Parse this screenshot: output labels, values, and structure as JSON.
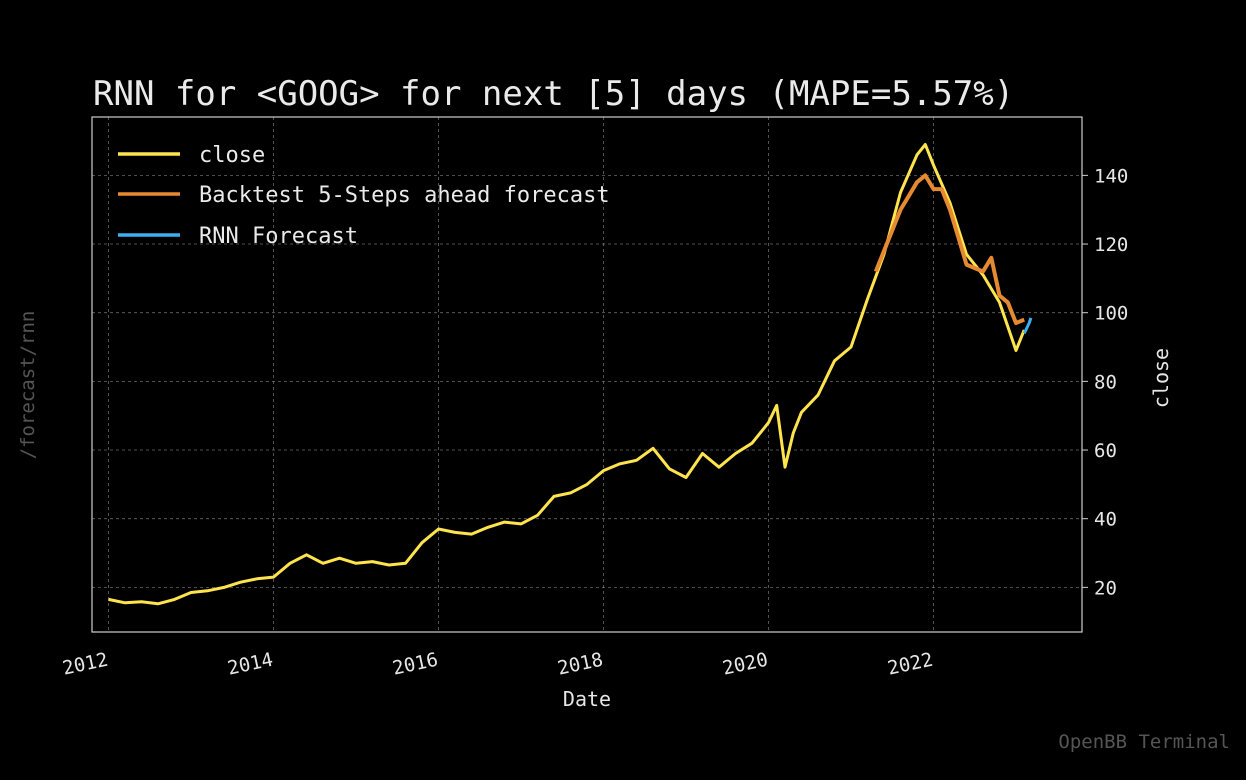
{
  "page": {
    "side_label": "/forecast/rnn",
    "watermark": "OpenBB Terminal"
  },
  "chart_data": {
    "type": "line",
    "title": "RNN for <GOOG> for next [5] days (MAPE=5.57%)",
    "xlabel": "Date",
    "ylabel": "close",
    "xlim": [
      2011.8,
      2023.8
    ],
    "ylim": [
      7,
      157
    ],
    "x_ticks": [
      2012,
      2014,
      2016,
      2018,
      2020,
      2022
    ],
    "y_ticks": [
      20,
      40,
      60,
      80,
      100,
      120,
      140
    ],
    "grid": true,
    "legend_position": "top-left",
    "colors": {
      "close": "#ffe44d",
      "backtest": "#e58a30",
      "forecast": "#3ab0f0",
      "background": "#000000",
      "frame": "#cfcfcf"
    },
    "series": [
      {
        "name": "close",
        "x": [
          2012.0,
          2012.2,
          2012.4,
          2012.6,
          2012.8,
          2013.0,
          2013.2,
          2013.4,
          2013.6,
          2013.8,
          2014.0,
          2014.2,
          2014.4,
          2014.6,
          2014.8,
          2015.0,
          2015.2,
          2015.4,
          2015.6,
          2015.8,
          2016.0,
          2016.2,
          2016.4,
          2016.6,
          2016.8,
          2017.0,
          2017.2,
          2017.4,
          2017.6,
          2017.8,
          2018.0,
          2018.2,
          2018.4,
          2018.6,
          2018.8,
          2019.0,
          2019.2,
          2019.4,
          2019.6,
          2019.8,
          2020.0,
          2020.1,
          2020.2,
          2020.3,
          2020.4,
          2020.6,
          2020.8,
          2021.0,
          2021.2,
          2021.4,
          2021.6,
          2021.8,
          2021.9,
          2022.0,
          2022.2,
          2022.4,
          2022.6,
          2022.8,
          2023.0,
          2023.1
        ],
        "values": [
          16.5,
          15.5,
          15.8,
          15.2,
          16.5,
          18.5,
          19.0,
          20.0,
          21.5,
          22.5,
          23.0,
          27.0,
          29.5,
          27.0,
          28.5,
          27.0,
          27.5,
          26.5,
          27.0,
          33.0,
          37.0,
          36.0,
          35.5,
          37.5,
          39.0,
          38.5,
          41.0,
          46.5,
          47.5,
          50.0,
          54.0,
          56.0,
          57.0,
          60.5,
          54.5,
          52.0,
          59.0,
          55.0,
          59.0,
          62.0,
          68.0,
          73.0,
          55.0,
          65.0,
          71.0,
          76.0,
          86.0,
          90.0,
          104.0,
          117.0,
          135.0,
          146.0,
          149.0,
          143.0,
          132.0,
          117.0,
          111.0,
          103.0,
          89.0,
          95.0
        ]
      },
      {
        "name": "Backtest 5-Steps ahead forecast",
        "x": [
          2021.3,
          2021.4,
          2021.5,
          2021.6,
          2021.7,
          2021.8,
          2021.9,
          2022.0,
          2022.1,
          2022.2,
          2022.3,
          2022.4,
          2022.5,
          2022.6,
          2022.7,
          2022.8,
          2022.9,
          2023.0,
          2023.1
        ],
        "values": [
          112.0,
          118.0,
          124.0,
          130.0,
          134.0,
          138.0,
          140.0,
          136.0,
          136.0,
          130.0,
          122.0,
          114.0,
          113.0,
          112.0,
          116.0,
          105.0,
          103.0,
          97.0,
          98.0
        ]
      },
      {
        "name": "RNN Forecast",
        "x": [
          2023.1,
          2023.12,
          2023.14,
          2023.16,
          2023.18
        ],
        "values": [
          94.0,
          95.0,
          96.0,
          97.0,
          98.5
        ]
      }
    ]
  }
}
